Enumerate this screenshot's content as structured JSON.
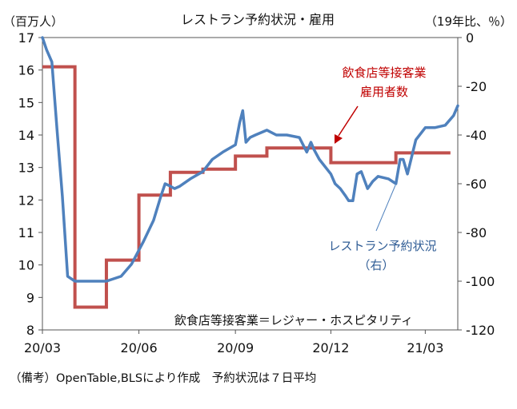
{
  "chart_data": {
    "type": "line",
    "title": "レストラン予約状況・雇用",
    "left_axis_unit": "（百万人）",
    "right_axis_unit": "（19年比、％）",
    "y_left_lim": [
      8,
      17
    ],
    "y_left_ticks": [
      "8",
      "9",
      "10",
      "11",
      "12",
      "13",
      "14",
      "15",
      "16",
      "17"
    ],
    "y_right_lim": [
      -120,
      0
    ],
    "y_right_ticks": [
      "0",
      "-20",
      "-40",
      "-60",
      "-80",
      "-100",
      "-120"
    ],
    "x_ticks": [
      "20/03",
      "20/06",
      "20/09",
      "20/12",
      "21/03"
    ],
    "x_range_months": [
      "2020-03",
      "2021-04"
    ],
    "grid": false,
    "series": [
      {
        "name": "飲食店等接客業雇用者数",
        "label_lines": [
          "飲食店等接客業",
          "雇用者数"
        ],
        "axis": "left",
        "color": "#c0504d",
        "style": "step",
        "x": [
          "2020-03",
          "2020-04",
          "2020-05",
          "2020-06",
          "2020-07",
          "2020-08",
          "2020-09",
          "2020-10",
          "2020-11",
          "2020-12",
          "2021-01",
          "2021-02",
          "2021-03"
        ],
        "values": [
          16.1,
          8.7,
          10.15,
          12.15,
          12.85,
          12.95,
          13.35,
          13.6,
          13.6,
          13.15,
          13.15,
          13.45,
          13.45
        ]
      },
      {
        "name": "レストラン予約状況（右）",
        "label_lines": [
          "レストラン予約状況",
          "（右）"
        ],
        "axis": "right",
        "color": "#4f81bd",
        "style": "line",
        "x": [
          "2020-03-01",
          "2020-03-05",
          "2020-03-10",
          "2020-03-15",
          "2020-03-20",
          "2020-03-25",
          "2020-04-01",
          "2020-04-15",
          "2020-05-01",
          "2020-05-15",
          "2020-05-25",
          "2020-06-05",
          "2020-06-15",
          "2020-06-22",
          "2020-06-26",
          "2020-07-01",
          "2020-07-05",
          "2020-07-10",
          "2020-07-20",
          "2020-08-01",
          "2020-08-10",
          "2020-08-20",
          "2020-09-01",
          "2020-09-05",
          "2020-09-08",
          "2020-09-11",
          "2020-09-15",
          "2020-09-20",
          "2020-10-01",
          "2020-10-10",
          "2020-10-20",
          "2020-11-01",
          "2020-11-08",
          "2020-11-12",
          "2020-11-15",
          "2020-11-20",
          "2020-12-01",
          "2020-12-05",
          "2020-12-10",
          "2020-12-15",
          "2020-12-18",
          "2020-12-22",
          "2020-12-26",
          "2020-12-30",
          "2021-01-05",
          "2021-01-10",
          "2021-01-15",
          "2021-01-25",
          "2021-02-01",
          "2021-02-05",
          "2021-02-08",
          "2021-02-12",
          "2021-02-20",
          "2021-03-01",
          "2021-03-10",
          "2021-03-20",
          "2021-03-28",
          "2021-04-01"
        ],
        "values": [
          0,
          -5,
          -10,
          -38,
          -65,
          -98,
          -100,
          -100,
          -100,
          -98,
          -93,
          -84,
          -75,
          -65,
          -60,
          -61,
          -62,
          -61,
          -58,
          -55,
          -50,
          -47,
          -44,
          -35,
          -30,
          -43,
          -41,
          -40,
          -38,
          -40,
          -40,
          -41,
          -47,
          -43,
          -46,
          -50,
          -56,
          -60,
          -62,
          -65,
          -67,
          -67,
          -56,
          -55,
          -62,
          -59,
          -57,
          -58,
          -60,
          -50,
          -50,
          -56,
          -42,
          -37,
          -37,
          -36,
          -32,
          -28
        ]
      }
    ],
    "annotation": "飲食店等接客業＝レジャー・ホスピタリティ"
  },
  "note": "（備考）OpenTable,BLSにより作成　予約状況は７日平均"
}
